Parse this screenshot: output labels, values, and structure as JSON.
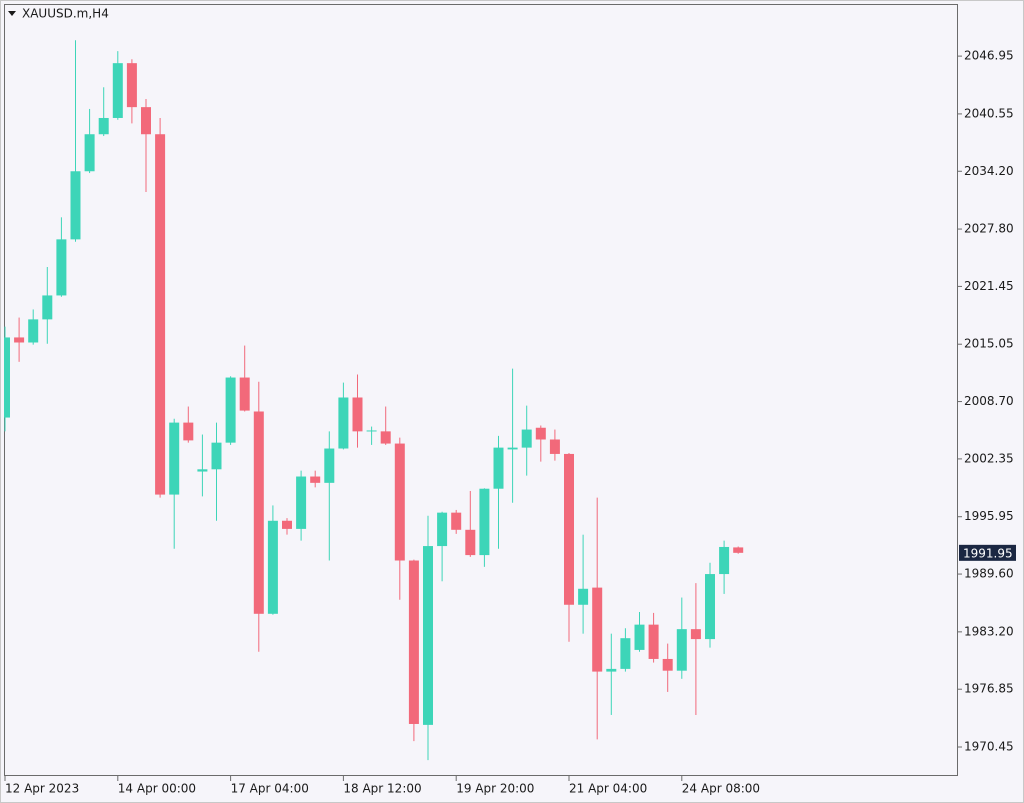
{
  "chart_data": {
    "type": "candlestick",
    "title": "XAUUSD.m,H4",
    "categories": [
      "12 Apr 2023",
      null,
      null,
      null,
      null,
      null,
      null,
      null,
      "14 Apr 00:00",
      null,
      null,
      null,
      null,
      null,
      null,
      null,
      "17 Apr 04:00",
      null,
      null,
      null,
      null,
      null,
      null,
      null,
      "18 Apr 12:00",
      null,
      null,
      null,
      null,
      null,
      null,
      null,
      "19 Apr 20:00",
      null,
      null,
      null,
      null,
      null,
      null,
      null,
      "21 Apr 04:00",
      null,
      null,
      null,
      null,
      null,
      null,
      null,
      "24 Apr 08:00",
      null,
      null,
      null,
      null
    ],
    "open": [
      2006.93,
      2015.8,
      2015.24,
      2017.8,
      2020.45,
      2026.66,
      2034.2,
      2038.3,
      2040.1,
      2046.17,
      2041.3,
      2038.3,
      1998.4,
      2006.37,
      2000.95,
      2001.2,
      2004.15,
      2011.36,
      2007.6,
      1985.2,
      1995.5,
      1994.6,
      2000.4,
      1999.7,
      2003.5,
      2009.15,
      2005.4,
      2005.4,
      2004.05,
      1991.1,
      1972.9,
      1992.7,
      1996.4,
      1994.5,
      1991.7,
      1999.05,
      2003.4,
      2003.6,
      2005.8,
      2004.5,
      2002.9,
      1986.2,
      1988.1,
      1978.8,
      1979.1,
      1981.2,
      1984.0,
      1980.2,
      1978.9,
      1983.5,
      1982.4,
      1989.6,
      1992.55
    ],
    "high": [
      2017.0,
      2018.0,
      2018.9,
      2023.6,
      2029.1,
      2048.7,
      2041.1,
      2043.5,
      2047.5,
      2046.6,
      2042.2,
      2040.1,
      2006.8,
      2008.15,
      2005.05,
      2006.37,
      2011.5,
      2014.9,
      2010.9,
      1997.2,
      1995.8,
      2001.05,
      2001.05,
      2005.4,
      2010.8,
      2011.7,
      2005.93,
      2008.15,
      2004.7,
      1991.2,
      1996.06,
      1996.5,
      1996.7,
      1998.8,
      1999.1,
      2004.9,
      2012.35,
      2008.25,
      2006.05,
      2005.6,
      2003.0,
      1993.96,
      1998.06,
      1983.0,
      1983.6,
      1985.4,
      1985.3,
      1981.9,
      1987.0,
      1988.6,
      1990.85,
      1993.3,
      1992.65
    ],
    "low": [
      2005.4,
      2013.1,
      2015.0,
      2015.1,
      2020.3,
      2026.4,
      2034.0,
      2038.1,
      2039.9,
      2039.5,
      2031.9,
      1998.06,
      1992.4,
      2004.15,
      1998.2,
      1995.5,
      2003.9,
      2007.6,
      1981.0,
      1985.1,
      1993.96,
      1993.3,
      1999.2,
      1991.1,
      2003.4,
      2003.6,
      2003.9,
      2003.9,
      1986.75,
      1971.1,
      1969.0,
      1988.8,
      1994.05,
      1991.5,
      1990.4,
      1992.4,
      1997.5,
      2000.5,
      2002.05,
      2002.16,
      1982.1,
      1983.0,
      1971.3,
      1974.0,
      1978.8,
      1981.0,
      1979.8,
      1976.55,
      1978.0,
      1974.0,
      1981.45,
      1987.4,
      1991.85
    ],
    "close": [
      2015.8,
      2015.24,
      2017.8,
      2020.45,
      2026.66,
      2034.2,
      2038.3,
      2040.1,
      2046.17,
      2041.3,
      2038.3,
      1998.4,
      2006.37,
      2004.4,
      2001.2,
      2004.15,
      2011.36,
      2007.7,
      1985.2,
      1995.5,
      1994.6,
      2000.4,
      1999.7,
      2003.5,
      2009.15,
      2005.4,
      2005.5,
      2004.05,
      1991.1,
      1973.0,
      1992.7,
      1996.4,
      1994.5,
      1991.7,
      1999.05,
      2003.6,
      2003.6,
      2005.6,
      2004.5,
      2002.9,
      1986.2,
      1987.97,
      1978.8,
      1979.1,
      1982.5,
      1984.0,
      1980.2,
      1978.9,
      1983.5,
      1982.4,
      1989.6,
      1992.6,
      1991.95
    ],
    "up_color": "#3dd5b8",
    "down_color": "#f2697a",
    "ylim": [
      1967.24,
      2052.72
    ],
    "yticks": [
      2046.95,
      2040.55,
      {
        "value": 2034.2,
        "label": "2034.20"
      },
      {
        "value": 2027.8,
        "label": "2027.80"
      },
      2021.45,
      2015.05,
      {
        "value": 2008.7,
        "label": "2008.70"
      },
      2002.35,
      1995.95,
      {
        "value": 1989.6,
        "label": "1989.60"
      },
      {
        "value": 1983.2,
        "label": "1983.20"
      },
      1976.85,
      1970.45
    ],
    "last_price": 1991.95
  }
}
